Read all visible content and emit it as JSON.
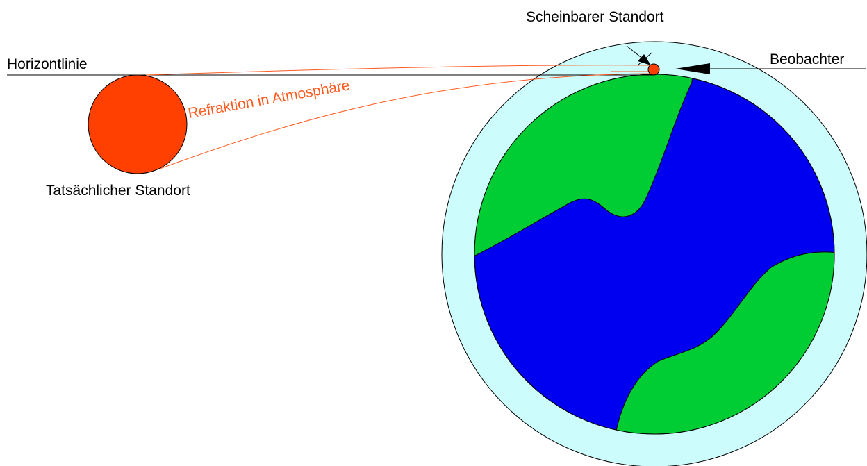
{
  "labels": {
    "horizon": "Horizontlinie",
    "apparent_position": "Scheinbarer Standort",
    "observer": "Beobachter",
    "refraction": "Refraktion in Atmosphäre",
    "actual_position": "Tatsächlicher Standort"
  },
  "colors": {
    "sun": "#ff4000",
    "atmosphere": "#ccfcfc",
    "land": "#00cc33",
    "ocean": "#0000f0",
    "ray": "#ff5a1e",
    "line": "#000000",
    "refraction_text": "#ff5a1e"
  },
  "icons": {
    "observer_pointer": "arrow-left-icon",
    "apparent_pointer": "arrow-down-icon"
  }
}
